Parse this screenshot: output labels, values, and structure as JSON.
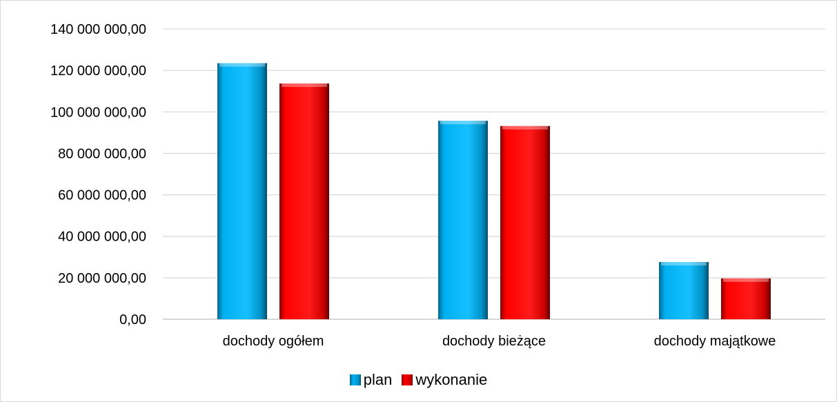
{
  "chart_data": {
    "type": "bar",
    "categories": [
      "dochody ogółem",
      "dochody bieżące",
      "dochody majątkowe"
    ],
    "series": [
      {
        "name": "plan",
        "color": "#00b0f0",
        "values": [
          123500000,
          95700000,
          27600000
        ]
      },
      {
        "name": "wykonanie",
        "color": "#ff0000",
        "values": [
          113700000,
          93200000,
          19700000
        ]
      }
    ],
    "ylim": [
      0,
      140000000
    ],
    "yticks": [
      "0,00",
      "20 000 000,00",
      "40 000 000,00",
      "60 000 000,00",
      "80 000 000,00",
      "100 000 000,00",
      "120 000 000,00",
      "140 000 000,00"
    ],
    "ytick_values": [
      0,
      20000000,
      40000000,
      60000000,
      80000000,
      100000000,
      120000000,
      140000000
    ],
    "grid": true,
    "legend_position": "bottom"
  }
}
